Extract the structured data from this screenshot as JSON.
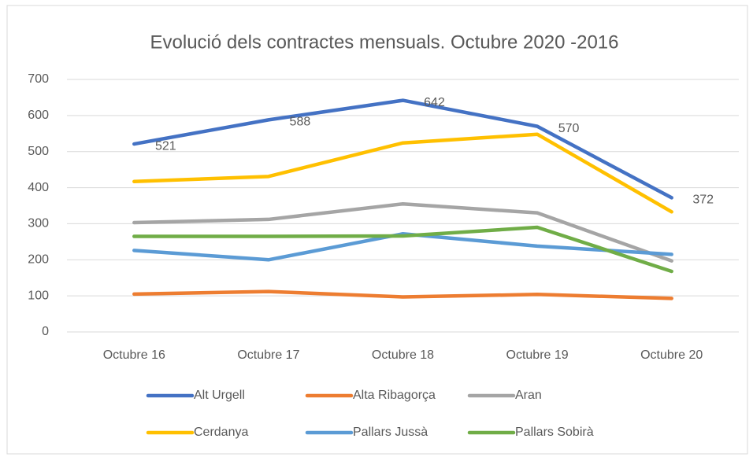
{
  "chart_data": {
    "type": "line",
    "title": "Evolució dels contractes mensuals. Octubre 2020 -2016",
    "categories": [
      "Octubre 16",
      "Octubre 17",
      "Octubre 18",
      "Octubre 19",
      "Octubre 20"
    ],
    "ylim": [
      0,
      700
    ],
    "yticks": [
      0,
      100,
      200,
      300,
      400,
      500,
      600,
      700
    ],
    "grid": true,
    "legend": "bottom",
    "series": [
      {
        "name": "Alt Urgell",
        "color": "#4472c4",
        "values": [
          521,
          588,
          642,
          570,
          372
        ]
      },
      {
        "name": "Alta Ribagorça",
        "color": "#ed7d31",
        "values": [
          105,
          112,
          97,
          104,
          93
        ]
      },
      {
        "name": "Aran",
        "color": "#a5a5a5",
        "values": [
          303,
          312,
          355,
          330,
          197
        ]
      },
      {
        "name": "Cerdanya",
        "color": "#ffc000",
        "values": [
          417,
          431,
          524,
          548,
          333
        ]
      },
      {
        "name": "Pallars Jussà",
        "color": "#5b9bd5",
        "values": [
          226,
          200,
          272,
          238,
          215
        ]
      },
      {
        "name": "Pallars Sobirà",
        "color": "#70ad47",
        "values": [
          265,
          265,
          266,
          290,
          168
        ]
      }
    ]
  }
}
